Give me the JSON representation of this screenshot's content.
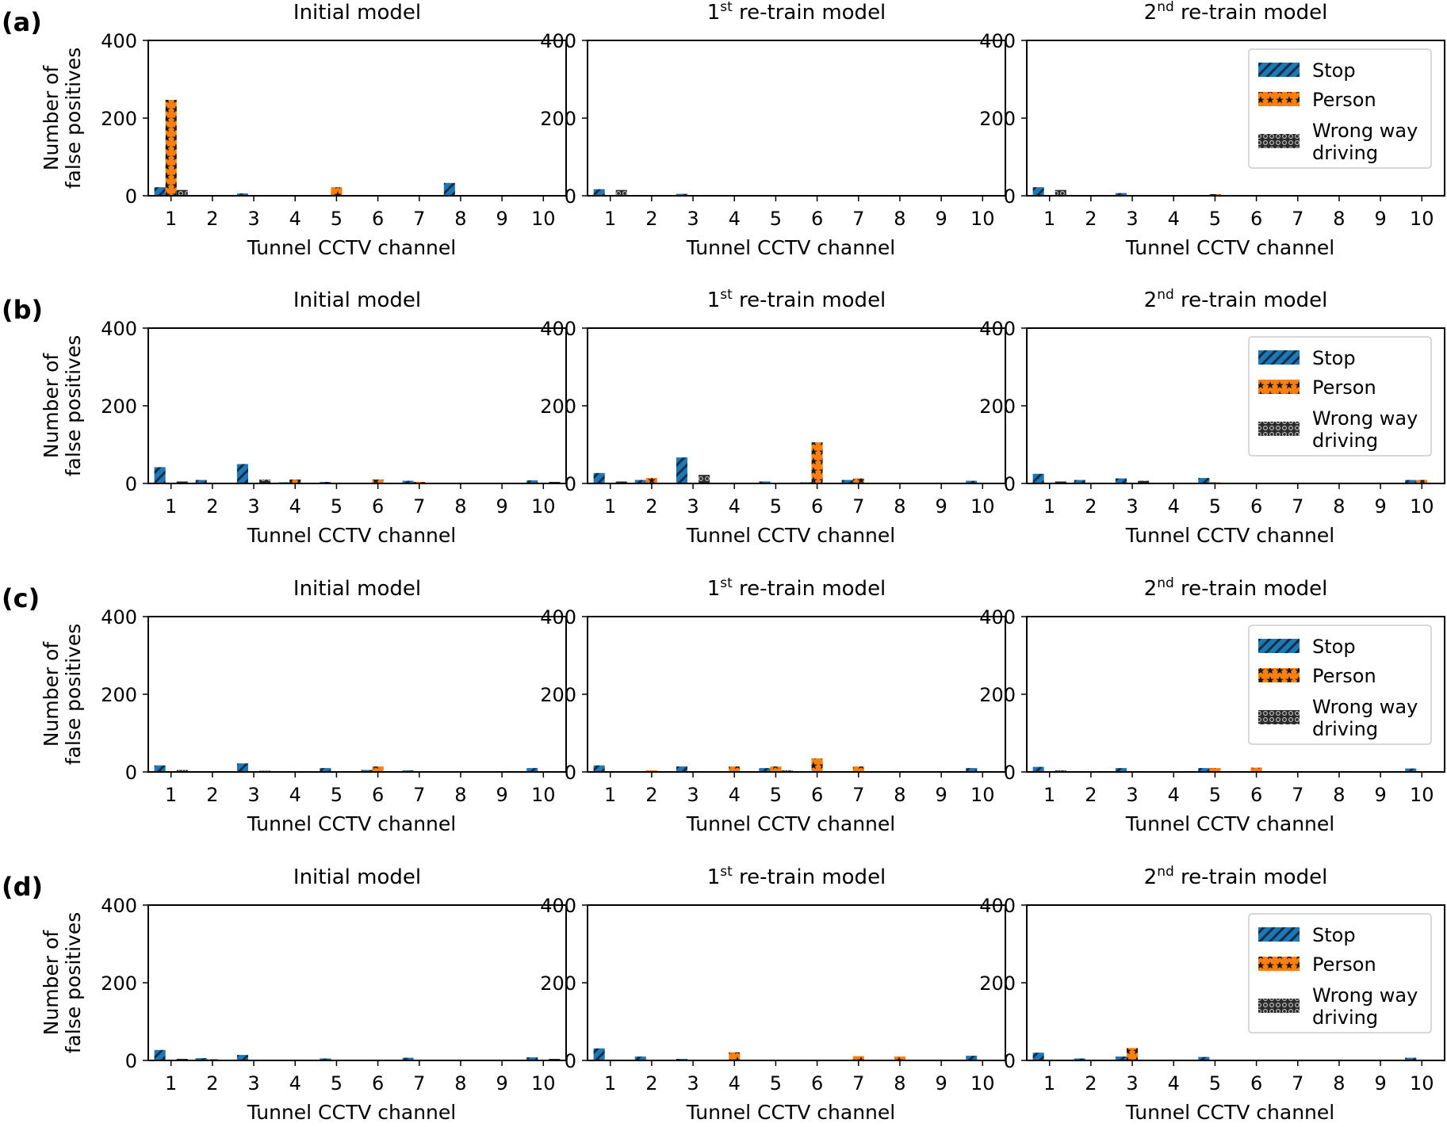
{
  "figure": {
    "row_labels": [
      "(a)",
      "(b)",
      "(c)",
      "(d)"
    ],
    "panel_titles": [
      {
        "main": "Initial model",
        "sup": "",
        "rest": ""
      },
      {
        "main": "1",
        "sup": "st",
        "rest": " re-train model"
      },
      {
        "main": "2",
        "sup": "nd",
        "rest": " re-train model"
      }
    ],
    "xlabel": "Tunnel CCTV channel",
    "ylabel_lines": [
      "Number of",
      "false positives"
    ],
    "legend": [
      {
        "label": "Stop"
      },
      {
        "label": "Person"
      },
      {
        "label": "Wrong way",
        "label2": "driving"
      }
    ],
    "colors": {
      "stop": "#1f77b4",
      "person": "#ff7f0e",
      "wrong_way": "#7f7f7f"
    },
    "hatches": {
      "stop": "diagonal",
      "person": "stars",
      "wrong_way": "circles"
    }
  },
  "chart_data": [
    {
      "type": "bar",
      "row": "(a)",
      "title": "Initial model",
      "categories": [
        "1",
        "2",
        "3",
        "4",
        "5",
        "6",
        "7",
        "8",
        "9",
        "10"
      ],
      "ylim": [
        0,
        400
      ],
      "yticks": [
        0,
        200,
        400
      ],
      "xlabel": "Tunnel CCTV channel",
      "ylabel": "Number of false positives",
      "legend": false,
      "series": [
        {
          "name": "Stop",
          "values": [
            22,
            0,
            6,
            1,
            2,
            0,
            0,
            33,
            0,
            0
          ]
        },
        {
          "name": "Person",
          "values": [
            247,
            0,
            0,
            0,
            22,
            0,
            0,
            0,
            0,
            0
          ]
        },
        {
          "name": "Wrong way driving",
          "values": [
            15,
            0,
            0,
            0,
            0,
            0,
            0,
            0,
            0,
            0
          ]
        }
      ]
    },
    {
      "type": "bar",
      "row": "(a)",
      "title": "1st re-train model",
      "categories": [
        "1",
        "2",
        "3",
        "4",
        "5",
        "6",
        "7",
        "8",
        "9",
        "10"
      ],
      "ylim": [
        0,
        400
      ],
      "yticks": [
        0,
        200,
        400
      ],
      "xlabel": "Tunnel CCTV channel",
      "ylabel": "",
      "legend": false,
      "series": [
        {
          "name": "Stop",
          "values": [
            17,
            0,
            5,
            0,
            0,
            0,
            0,
            0,
            0,
            0
          ]
        },
        {
          "name": "Person",
          "values": [
            0,
            0,
            0,
            0,
            0,
            0,
            1,
            0,
            0,
            0
          ]
        },
        {
          "name": "Wrong way driving",
          "values": [
            15,
            0,
            0,
            0,
            0,
            0,
            0,
            0,
            0,
            0
          ]
        }
      ]
    },
    {
      "type": "bar",
      "row": "(a)",
      "title": "2nd re-train model",
      "categories": [
        "1",
        "2",
        "3",
        "4",
        "5",
        "6",
        "7",
        "8",
        "9",
        "10"
      ],
      "ylim": [
        0,
        400
      ],
      "yticks": [
        0,
        200,
        400
      ],
      "xlabel": "Tunnel CCTV channel",
      "ylabel": "",
      "legend": true,
      "series": [
        {
          "name": "Stop",
          "values": [
            22,
            0,
            7,
            1,
            0,
            0,
            0,
            0,
            0,
            0
          ]
        },
        {
          "name": "Person",
          "values": [
            0,
            0,
            0,
            0,
            4,
            0,
            0,
            0,
            0,
            0
          ]
        },
        {
          "name": "Wrong way driving",
          "values": [
            15,
            0,
            0,
            0,
            0,
            0,
            0,
            0,
            0,
            0
          ]
        }
      ]
    },
    {
      "type": "bar",
      "row": "(b)",
      "title": "Initial model",
      "categories": [
        "1",
        "2",
        "3",
        "4",
        "5",
        "6",
        "7",
        "8",
        "9",
        "10"
      ],
      "ylim": [
        0,
        400
      ],
      "yticks": [
        0,
        200,
        400
      ],
      "xlabel": "Tunnel CCTV channel",
      "ylabel": "Number of false positives",
      "legend": false,
      "series": [
        {
          "name": "Stop",
          "values": [
            42,
            9,
            50,
            3,
            4,
            1,
            7,
            0,
            0,
            8
          ]
        },
        {
          "name": "Person",
          "values": [
            0,
            0,
            0,
            10,
            0,
            10,
            4,
            0,
            0,
            0
          ]
        },
        {
          "name": "Wrong way driving",
          "values": [
            5,
            0,
            10,
            0,
            0,
            0,
            0,
            0,
            0,
            4
          ]
        }
      ]
    },
    {
      "type": "bar",
      "row": "(b)",
      "title": "1st re-train model",
      "categories": [
        "1",
        "2",
        "3",
        "4",
        "5",
        "6",
        "7",
        "8",
        "9",
        "10"
      ],
      "ylim": [
        0,
        400
      ],
      "yticks": [
        0,
        200,
        400
      ],
      "xlabel": "Tunnel CCTV channel",
      "ylabel": "",
      "legend": false,
      "series": [
        {
          "name": "Stop",
          "values": [
            27,
            9,
            67,
            0,
            5,
            3,
            9,
            0,
            0,
            7
          ]
        },
        {
          "name": "Person",
          "values": [
            0,
            14,
            0,
            2,
            0,
            106,
            13,
            1,
            0,
            0
          ]
        },
        {
          "name": "Wrong way driving",
          "values": [
            5,
            0,
            22,
            0,
            0,
            0,
            0,
            0,
            0,
            0
          ]
        }
      ]
    },
    {
      "type": "bar",
      "row": "(b)",
      "title": "2nd re-train model",
      "categories": [
        "1",
        "2",
        "3",
        "4",
        "5",
        "6",
        "7",
        "8",
        "9",
        "10"
      ],
      "ylim": [
        0,
        400
      ],
      "yticks": [
        0,
        200,
        400
      ],
      "xlabel": "Tunnel CCTV channel",
      "ylabel": "",
      "legend": true,
      "series": [
        {
          "name": "Stop",
          "values": [
            25,
            9,
            13,
            0,
            14,
            0,
            0,
            2,
            0,
            9
          ]
        },
        {
          "name": "Person",
          "values": [
            0,
            2,
            0,
            2,
            3,
            0,
            2,
            0,
            0,
            9
          ]
        },
        {
          "name": "Wrong way driving",
          "values": [
            5,
            0,
            7,
            0,
            0,
            0,
            0,
            0,
            0,
            0
          ]
        }
      ]
    },
    {
      "type": "bar",
      "row": "(c)",
      "title": "Initial model",
      "categories": [
        "1",
        "2",
        "3",
        "4",
        "5",
        "6",
        "7",
        "8",
        "9",
        "10"
      ],
      "ylim": [
        0,
        400
      ],
      "yticks": [
        0,
        200,
        400
      ],
      "xlabel": "Tunnel CCTV channel",
      "ylabel": "Number of false positives",
      "legend": false,
      "series": [
        {
          "name": "Stop",
          "values": [
            17,
            0,
            22,
            0,
            10,
            5,
            4,
            0,
            0,
            10
          ]
        },
        {
          "name": "Person",
          "values": [
            0,
            0,
            0,
            0,
            0,
            14,
            0,
            0,
            0,
            0
          ]
        },
        {
          "name": "Wrong way driving",
          "values": [
            5,
            0,
            3,
            0,
            0,
            0,
            0,
            0,
            0,
            0
          ]
        }
      ]
    },
    {
      "type": "bar",
      "row": "(c)",
      "title": "1st re-train model",
      "categories": [
        "1",
        "2",
        "3",
        "4",
        "5",
        "6",
        "7",
        "8",
        "9",
        "10"
      ],
      "ylim": [
        0,
        400
      ],
      "yticks": [
        0,
        200,
        400
      ],
      "xlabel": "Tunnel CCTV channel",
      "ylabel": "",
      "legend": false,
      "series": [
        {
          "name": "Stop",
          "values": [
            17,
            0,
            14,
            0,
            10,
            0,
            0,
            0,
            0,
            10
          ]
        },
        {
          "name": "Person",
          "values": [
            0,
            4,
            0,
            14,
            14,
            35,
            14,
            0,
            0,
            0
          ]
        },
        {
          "name": "Wrong way driving",
          "values": [
            0,
            0,
            2,
            0,
            4,
            0,
            0,
            0,
            0,
            0
          ]
        }
      ]
    },
    {
      "type": "bar",
      "row": "(c)",
      "title": "2nd re-train model",
      "categories": [
        "1",
        "2",
        "3",
        "4",
        "5",
        "6",
        "7",
        "8",
        "9",
        "10"
      ],
      "ylim": [
        0,
        400
      ],
      "yticks": [
        0,
        200,
        400
      ],
      "xlabel": "Tunnel CCTV channel",
      "ylabel": "",
      "legend": true,
      "series": [
        {
          "name": "Stop",
          "values": [
            13,
            2,
            10,
            2,
            10,
            0,
            0,
            0,
            0,
            9
          ]
        },
        {
          "name": "Person",
          "values": [
            0,
            2,
            0,
            0,
            10,
            11,
            0,
            0,
            0,
            0
          ]
        },
        {
          "name": "Wrong way driving",
          "values": [
            4,
            0,
            2,
            0,
            0,
            0,
            0,
            0,
            0,
            0
          ]
        }
      ]
    },
    {
      "type": "bar",
      "row": "(d)",
      "title": "Initial model",
      "categories": [
        "1",
        "2",
        "3",
        "4",
        "5",
        "6",
        "7",
        "8",
        "9",
        "10"
      ],
      "ylim": [
        0,
        400
      ],
      "yticks": [
        0,
        200,
        400
      ],
      "xlabel": "Tunnel CCTV channel",
      "ylabel": "Number of false positives",
      "legend": false,
      "series": [
        {
          "name": "Stop",
          "values": [
            27,
            6,
            14,
            0,
            5,
            0,
            7,
            0,
            0,
            8
          ]
        },
        {
          "name": "Person",
          "values": [
            0,
            3,
            0,
            0,
            0,
            0,
            0,
            0,
            0,
            0
          ]
        },
        {
          "name": "Wrong way driving",
          "values": [
            4,
            0,
            0,
            0,
            0,
            0,
            0,
            0,
            0,
            4
          ]
        }
      ]
    },
    {
      "type": "bar",
      "row": "(d)",
      "title": "1st re-train model",
      "categories": [
        "1",
        "2",
        "3",
        "4",
        "5",
        "6",
        "7",
        "8",
        "9",
        "10"
      ],
      "ylim": [
        0,
        400
      ],
      "yticks": [
        0,
        200,
        400
      ],
      "xlabel": "Tunnel CCTV channel",
      "ylabel": "",
      "legend": false,
      "series": [
        {
          "name": "Stop",
          "values": [
            31,
            10,
            4,
            0,
            2,
            0,
            0,
            0,
            0,
            12
          ]
        },
        {
          "name": "Person",
          "values": [
            0,
            0,
            0,
            21,
            0,
            0,
            11,
            10,
            0,
            0
          ]
        },
        {
          "name": "Wrong way driving",
          "values": [
            0,
            0,
            0,
            0,
            0,
            0,
            0,
            0,
            0,
            0
          ]
        }
      ]
    },
    {
      "type": "bar",
      "row": "(d)",
      "title": "2nd re-train model",
      "categories": [
        "1",
        "2",
        "3",
        "4",
        "5",
        "6",
        "7",
        "8",
        "9",
        "10"
      ],
      "ylim": [
        0,
        400
      ],
      "yticks": [
        0,
        200,
        400
      ],
      "xlabel": "Tunnel CCTV channel",
      "ylabel": "",
      "legend": true,
      "series": [
        {
          "name": "Stop",
          "values": [
            20,
            5,
            10,
            0,
            9,
            0,
            0,
            0,
            0,
            7
          ]
        },
        {
          "name": "Person",
          "values": [
            0,
            0,
            32,
            0,
            0,
            0,
            0,
            0,
            0,
            0
          ]
        },
        {
          "name": "Wrong way driving",
          "values": [
            0,
            0,
            0,
            0,
            0,
            0,
            0,
            0,
            0,
            0
          ]
        }
      ]
    }
  ]
}
